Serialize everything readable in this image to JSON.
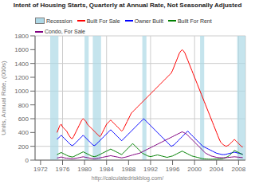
{
  "chart_data": {
    "type": "line",
    "title": "Intent of Housing Starts, Quarterly at Annual Rate, Not Seasonally Adjusted",
    "ylabel": "Units, Annual Rate, (000s)",
    "annotation": "http://calculatedriskblog.com/",
    "grid": true,
    "legend": "upper left",
    "xlim": [
      1971,
      2009.25
    ],
    "xticks": [
      1972,
      1976,
      1980,
      1984,
      1988,
      1992,
      1996,
      2000,
      2004,
      2008
    ],
    "ylim": [
      0,
      1800
    ],
    "yticks": [
      0,
      200,
      400,
      600,
      800,
      1000,
      1200,
      1400,
      1600,
      1800
    ],
    "recessions": {
      "name": "Recession",
      "color": "#add8e6",
      "periods": [
        [
          1973.75,
          1975.25
        ],
        [
          1980.0,
          1980.75
        ],
        [
          1981.5,
          1983.0
        ],
        [
          1990.5,
          1991.25
        ],
        [
          2001.0,
          2001.75
        ],
        [
          2007.75,
          2009.5
        ]
      ]
    },
    "x": [
      1975,
      1975.25,
      1975.5,
      1975.75,
      1976,
      1976.25,
      1976.5,
      1976.75,
      1977,
      1977.25,
      1977.5,
      1977.75,
      1978,
      1978.25,
      1978.5,
      1978.75,
      1979,
      1979.25,
      1979.5,
      1979.75,
      1980,
      1980.25,
      1980.5,
      1980.75,
      1981,
      1981.25,
      1981.5,
      1981.75,
      1982,
      1982.25,
      1982.5,
      1982.75,
      1983,
      1983.25,
      1983.5,
      1983.75,
      1984,
      1984.25,
      1984.5,
      1984.75,
      1985,
      1985.25,
      1985.5,
      1985.75,
      1986,
      1986.25,
      1986.5,
      1986.75,
      1987,
      1987.25,
      1987.5,
      1987.75,
      1988,
      1988.25,
      1988.5,
      1988.75,
      1989,
      1989.25,
      1989.5,
      1989.75,
      1990,
      1990.25,
      1990.5,
      1990.75,
      1991,
      1991.25,
      1991.5,
      1991.75,
      1992,
      1992.25,
      1992.5,
      1992.75,
      1993,
      1993.25,
      1993.5,
      1993.75,
      1994,
      1994.25,
      1994.5,
      1994.75,
      1995,
      1995.25,
      1995.5,
      1995.75,
      1996,
      1996.25,
      1996.5,
      1996.75,
      1997,
      1997.25,
      1997.5,
      1997.75,
      1998,
      1998.25,
      1998.5,
      1998.75,
      1999,
      1999.25,
      1999.5,
      1999.75,
      2000,
      2000.25,
      2000.5,
      2000.75,
      2001,
      2001.25,
      2001.5,
      2001.75,
      2002,
      2002.25,
      2002.5,
      2002.75,
      2003,
      2003.25,
      2003.5,
      2003.75,
      2004,
      2004.25,
      2004.5,
      2004.75,
      2005,
      2005.25,
      2005.5,
      2005.75,
      2006,
      2006.25,
      2006.5,
      2006.75,
      2007,
      2007.25,
      2007.5,
      2007.75,
      2008,
      2008.25,
      2008.5,
      2008.75
    ],
    "series": [
      {
        "name": "Built For Sale",
        "color": "#ff0000",
        "values": [
          400,
          450,
          500,
          520,
          480,
          460,
          440,
          420,
          380,
          350,
          320,
          310,
          340,
          380,
          420,
          460,
          500,
          540,
          580,
          600,
          580,
          560,
          520,
          500,
          480,
          460,
          440,
          420,
          400,
          380,
          360,
          340,
          360,
          400,
          440,
          480,
          520,
          540,
          560,
          580,
          560,
          540,
          520,
          500,
          480,
          460,
          440,
          420,
          440,
          480,
          520,
          560,
          600,
          640,
          680,
          700,
          720,
          740,
          760,
          780,
          800,
          820,
          840,
          860,
          880,
          900,
          920,
          940,
          960,
          980,
          1000,
          1020,
          1040,
          1060,
          1080,
          1100,
          1120,
          1140,
          1160,
          1180,
          1200,
          1220,
          1240,
          1260,
          1300,
          1350,
          1400,
          1450,
          1500,
          1550,
          1580,
          1600,
          1580,
          1550,
          1500,
          1450,
          1400,
          1350,
          1300,
          1250,
          1200,
          1150,
          1100,
          1050,
          1000,
          950,
          900,
          850,
          800,
          750,
          700,
          650,
          600,
          550,
          500,
          450,
          400,
          350,
          300,
          260,
          240,
          220,
          210,
          200,
          210,
          220,
          240,
          260,
          280,
          300,
          280,
          260,
          240,
          220,
          200,
          190
        ]
      },
      {
        "name": "Owner Built",
        "color": "#0000ff",
        "values": [
          300,
          320,
          340,
          360,
          340,
          320,
          300,
          280,
          260,
          240,
          220,
          210,
          220,
          240,
          260,
          280,
          300,
          320,
          340,
          360,
          340,
          320,
          300,
          280,
          260,
          240,
          220,
          210,
          220,
          240,
          260,
          280,
          300,
          320,
          340,
          360,
          380,
          400,
          420,
          440,
          420,
          400,
          380,
          360,
          340,
          320,
          300,
          280,
          300,
          320,
          340,
          360,
          380,
          400,
          420,
          440,
          460,
          480,
          500,
          520,
          540,
          560,
          580,
          600,
          580,
          560,
          540,
          520,
          500,
          480,
          460,
          440,
          420,
          400,
          380,
          360,
          340,
          320,
          300,
          280,
          260,
          240,
          220,
          200,
          210,
          220,
          240,
          260,
          280,
          300,
          320,
          340,
          360,
          380,
          400,
          420,
          400,
          380,
          360,
          340,
          320,
          300,
          280,
          260,
          240,
          220,
          200,
          190,
          180,
          170,
          160,
          150,
          140,
          130,
          120,
          110,
          100,
          95,
          90,
          85,
          80,
          80,
          80,
          85,
          90,
          95,
          100,
          105,
          110,
          115,
          110,
          105,
          100,
          95,
          90,
          85
        ]
      },
      {
        "name": "Built For Rent",
        "color": "#008000",
        "values": [
          80,
          90,
          100,
          110,
          100,
          90,
          80,
          70,
          60,
          55,
          50,
          45,
          50,
          60,
          70,
          80,
          90,
          100,
          110,
          120,
          110,
          100,
          90,
          80,
          70,
          60,
          55,
          50,
          55,
          60,
          70,
          80,
          90,
          100,
          110,
          120,
          130,
          140,
          150,
          160,
          150,
          140,
          130,
          120,
          110,
          100,
          90,
          80,
          100,
          120,
          140,
          160,
          180,
          200,
          220,
          240,
          220,
          200,
          180,
          160,
          140,
          120,
          100,
          90,
          80,
          70,
          60,
          55,
          50,
          55,
          60,
          65,
          70,
          75,
          70,
          65,
          60,
          55,
          50,
          45,
          40,
          45,
          50,
          55,
          60,
          70,
          80,
          90,
          100,
          110,
          120,
          130,
          120,
          110,
          100,
          90,
          80,
          70,
          60,
          55,
          50,
          45,
          40,
          35,
          30,
          25,
          20,
          18,
          16,
          15,
          14,
          13,
          12,
          13,
          14,
          15,
          16,
          17,
          18,
          19,
          20,
          25,
          30,
          40,
          50,
          60,
          80,
          100,
          120,
          140,
          130,
          120,
          110,
          100,
          90,
          80
        ]
      },
      {
        "name": "Condo, For Sale",
        "color": "#800080",
        "values": [
          30,
          35,
          40,
          45,
          40,
          35,
          30,
          28,
          26,
          24,
          22,
          20,
          22,
          25,
          28,
          32,
          36,
          40,
          44,
          48,
          44,
          40,
          36,
          32,
          28,
          24,
          22,
          20,
          22,
          25,
          28,
          32,
          36,
          40,
          44,
          48,
          52,
          56,
          60,
          64,
          60,
          56,
          52,
          48,
          44,
          40,
          36,
          32,
          36,
          40,
          44,
          50,
          56,
          62,
          68,
          74,
          80,
          86,
          90,
          95,
          100,
          110,
          120,
          130,
          140,
          150,
          160,
          170,
          180,
          190,
          200,
          210,
          220,
          230,
          240,
          250,
          260,
          270,
          280,
          290,
          300,
          310,
          320,
          330,
          340,
          350,
          360,
          370,
          380,
          390,
          400,
          410,
          400,
          390,
          380,
          360,
          340,
          320,
          300,
          280,
          260,
          240,
          220,
          200,
          180,
          160,
          140,
          120,
          100,
          90,
          80,
          70,
          60,
          55,
          50,
          45,
          40,
          38,
          36,
          35,
          34,
          34,
          35,
          36,
          38,
          40,
          42,
          44,
          46,
          48,
          46,
          44,
          42,
          40,
          38,
          36
        ]
      }
    ]
  }
}
